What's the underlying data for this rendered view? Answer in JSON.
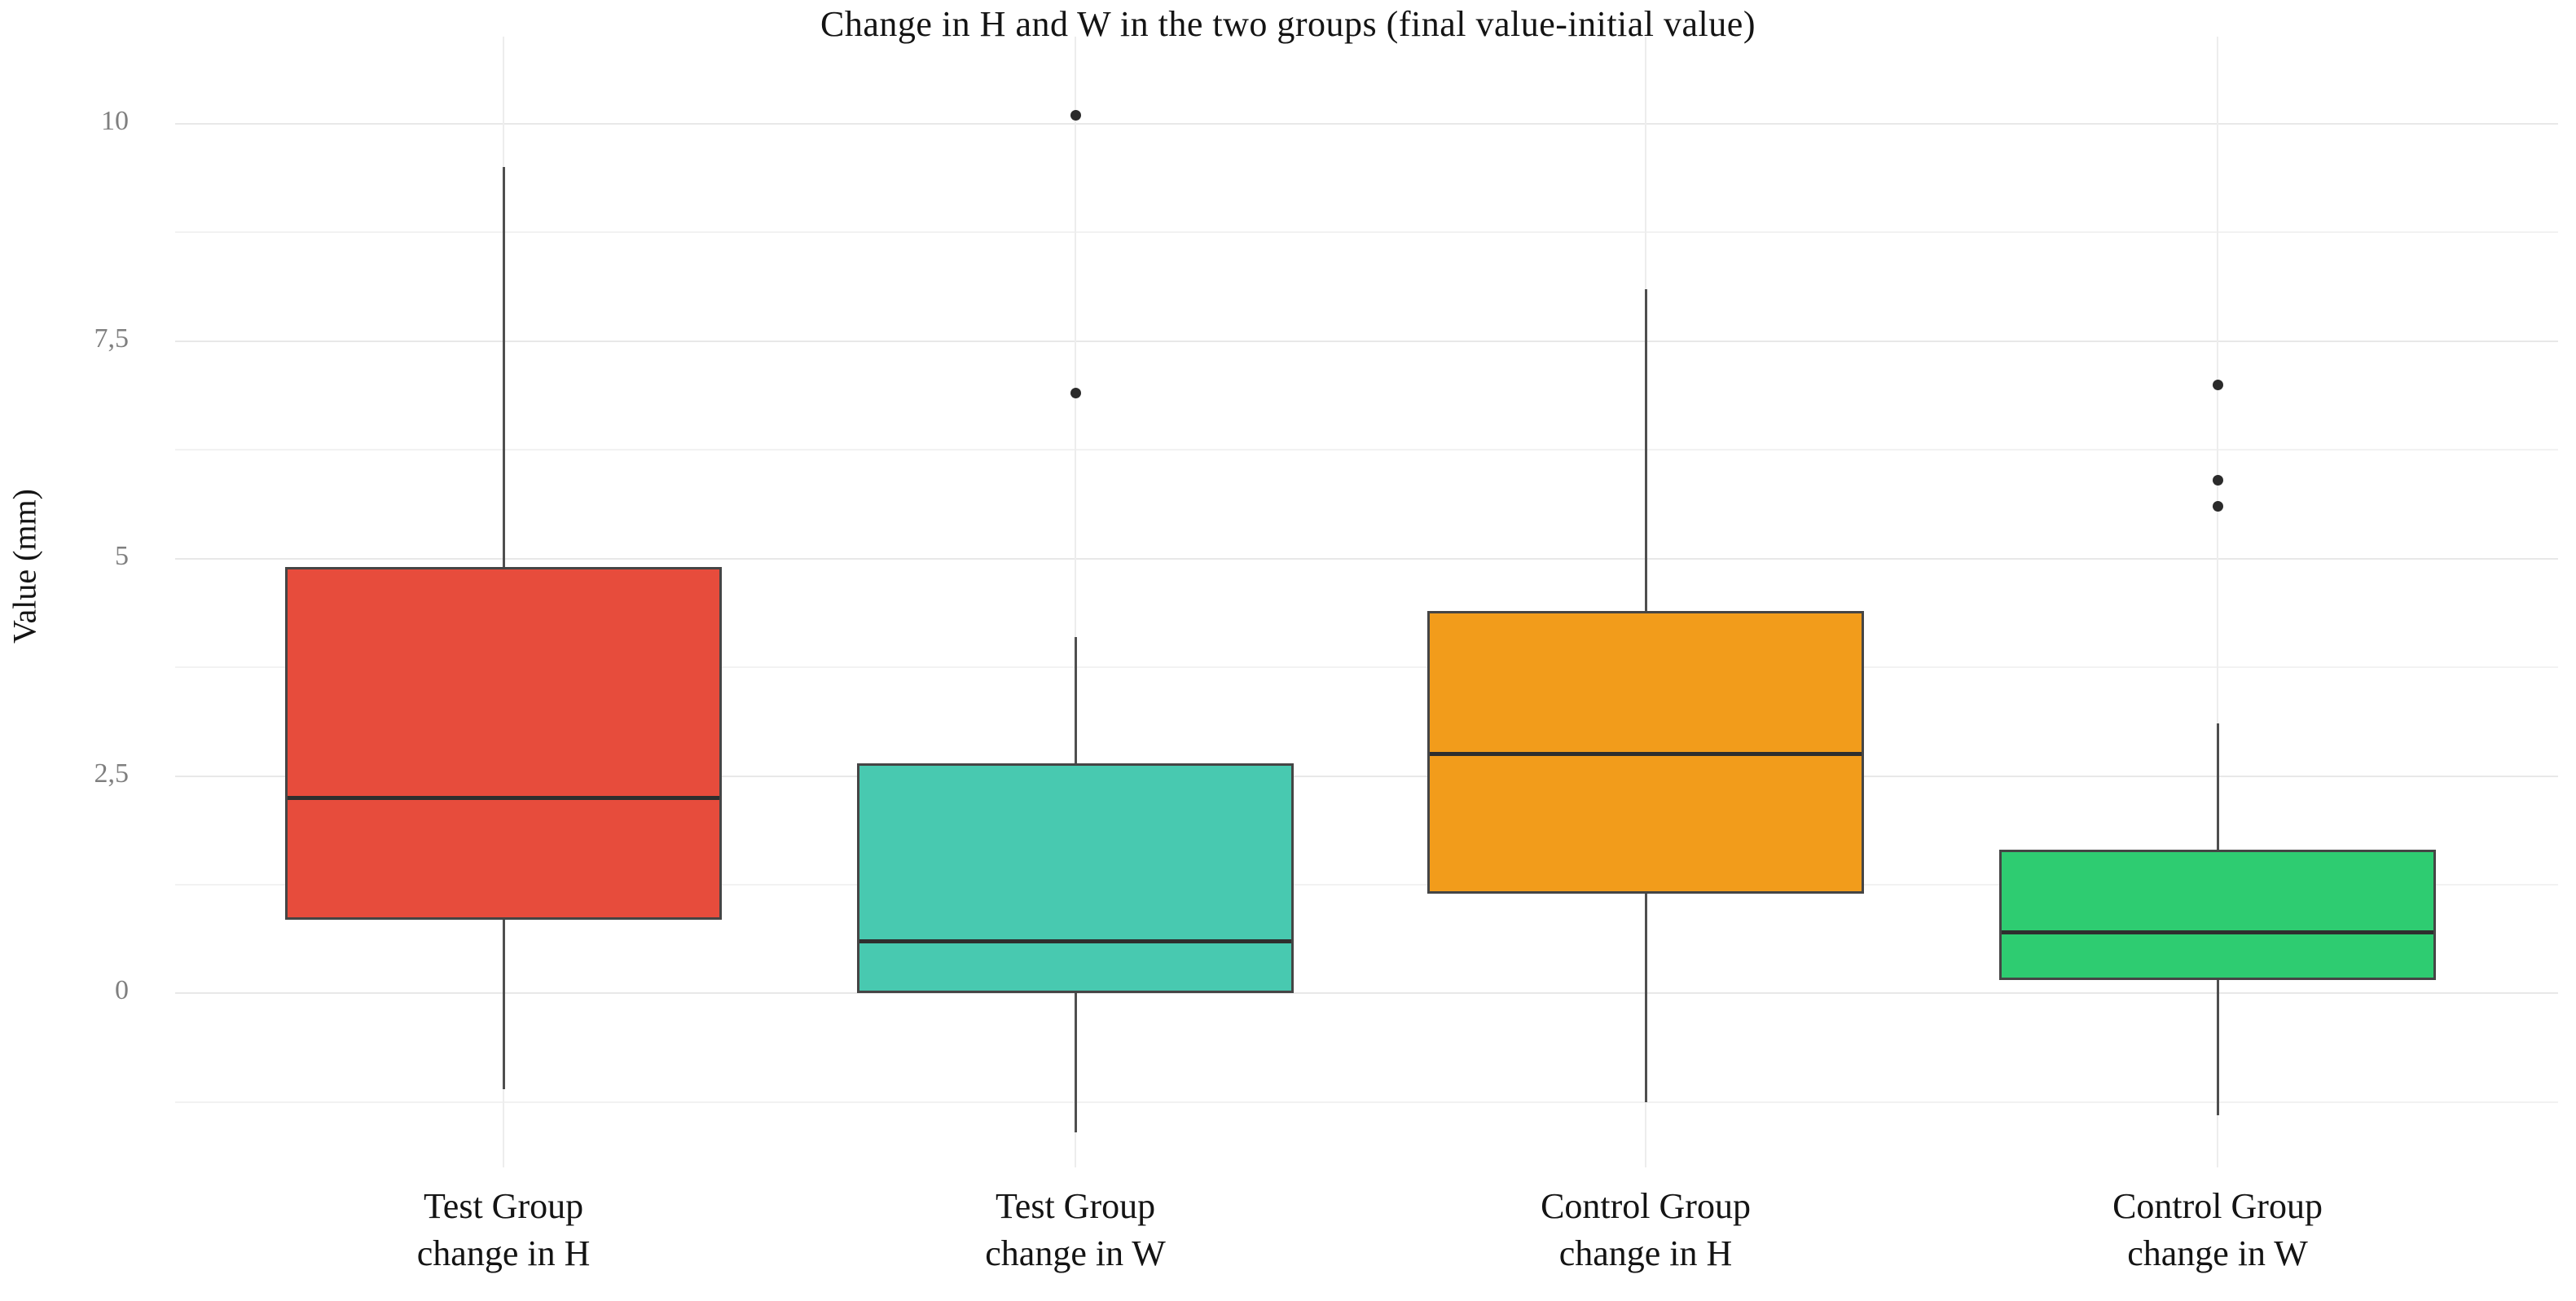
{
  "title": "Change in H and W in the two groups (final value-initial value)",
  "chart_data": {
    "type": "box",
    "title": "Change in H and W in the two groups (final value-initial value)",
    "xlabel": "",
    "ylabel": "Value (mm)",
    "ylim": [
      -2,
      11
    ],
    "grid": true,
    "legend": "none",
    "y_ticks": [
      {
        "value": 10,
        "label": "10"
      },
      {
        "value": 7.5,
        "label": "7,5"
      },
      {
        "value": 5,
        "label": "5"
      },
      {
        "value": 2.5,
        "label": "2,5"
      },
      {
        "value": 0,
        "label": "0"
      }
    ],
    "y_minor_gridlines": [
      8.75,
      6.25,
      3.75,
      1.25,
      -1.25
    ],
    "categories": [
      "Test Group change in H",
      "Test Group change in W",
      "Control Group change in H",
      "Control Group change in W"
    ],
    "series": [
      {
        "name": "Test Group change in H",
        "label_lines": [
          "Test Group",
          "change in H"
        ],
        "color": "#E74C3C",
        "whisker_low": -1.1,
        "q1": 0.85,
        "median": 2.25,
        "q3": 4.9,
        "whisker_high": 9.5,
        "outliers": []
      },
      {
        "name": "Test Group change in W",
        "label_lines": [
          "Test Group",
          "change in W"
        ],
        "color": "#48C9B0",
        "whisker_low": -1.6,
        "q1": 0.0,
        "median": 0.6,
        "q3": 2.65,
        "whisker_high": 4.1,
        "outliers": [
          6.9,
          10.1
        ]
      },
      {
        "name": "Control Group change in H",
        "label_lines": [
          "Control Group",
          "change in H"
        ],
        "color": "#F29C1B",
        "whisker_low": -1.25,
        "q1": 1.15,
        "median": 2.75,
        "q3": 4.4,
        "whisker_high": 8.1,
        "outliers": []
      },
      {
        "name": "Control Group change in W",
        "label_lines": [
          "Control Group",
          "change in W"
        ],
        "color": "#2ECC71",
        "whisker_low": -1.4,
        "q1": 0.15,
        "median": 0.7,
        "q3": 1.65,
        "whisker_high": 3.1,
        "outliers": [
          5.6,
          5.9,
          7.0
        ]
      }
    ],
    "category_centers_pct": [
      13.78,
      37.78,
      61.71,
      85.71
    ],
    "box_width_pct": 18.33
  },
  "style": {
    "background": "#ffffff",
    "box_border": "#454545",
    "median_color": "#2e2e2e",
    "whisker_color": "#4f4f4f",
    "outlier_color": "#2b2b2b",
    "major_grid": "#e8e8e8",
    "minor_grid": "#f2f2f2",
    "vertical_grid": "#ededed",
    "title_color": "#141414",
    "tick_color": "#7f7f7f"
  }
}
